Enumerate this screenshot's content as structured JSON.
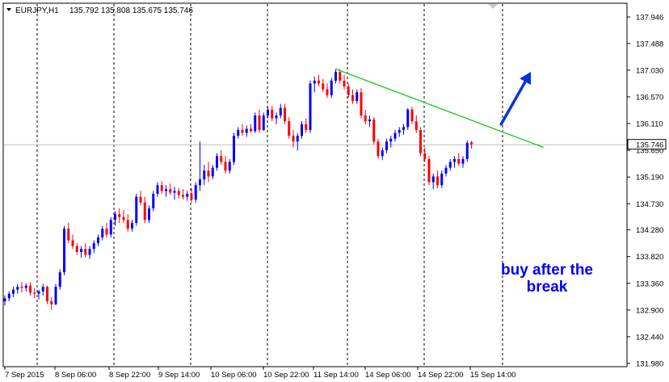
{
  "header": {
    "symbol": "EURJPY,H1",
    "ohlc": "135.792 135.808 135.675 135.746"
  },
  "annotation": {
    "line1": "buy after the",
    "line2": "break"
  },
  "colors": {
    "bull": "#0000ff",
    "bear": "#ff0000",
    "trendline": "#33cc33",
    "arrow": "#0033dd",
    "annotation": "#0000ff",
    "price_line": "#c0c0c0",
    "current_price_box": "#ffffff"
  },
  "chart_data": {
    "type": "candlestick",
    "symbol": "EURJPY",
    "timeframe": "H1",
    "grid": "vertical dashed separators",
    "ylim": [
      131.98,
      138.2
    ],
    "y_ticks": [
      "137.946",
      "137.488",
      "137.030",
      "136.570",
      "136.110",
      "135.650",
      "135.190",
      "134.730",
      "134.280",
      "133.820",
      "133.360",
      "132.900",
      "132.440",
      "131.980"
    ],
    "x_ticks": [
      "7 Sep 2015",
      "8 Sep 06:00",
      "8 Sep 22:00",
      "9 Sep 14:00",
      "10 Sep 06:00",
      "10 Sep 22:00",
      "11 Sep 14:00",
      "14 Sep 06:00",
      "14 Sep 22:00",
      "15 Sep 14:00"
    ],
    "current_price": "135.746",
    "current_price_value": 135.746,
    "candles": [
      {
        "o": 133.05,
        "h": 133.15,
        "l": 132.98,
        "c": 133.1
      },
      {
        "o": 133.1,
        "h": 133.22,
        "l": 133.05,
        "c": 133.18
      },
      {
        "o": 133.18,
        "h": 133.3,
        "l": 133.12,
        "c": 133.25
      },
      {
        "o": 133.25,
        "h": 133.35,
        "l": 133.18,
        "c": 133.3
      },
      {
        "o": 133.3,
        "h": 133.38,
        "l": 133.2,
        "c": 133.28
      },
      {
        "o": 133.28,
        "h": 133.36,
        "l": 133.22,
        "c": 133.32
      },
      {
        "o": 133.32,
        "h": 133.38,
        "l": 133.15,
        "c": 133.2
      },
      {
        "o": 133.2,
        "h": 133.28,
        "l": 133.1,
        "c": 133.18
      },
      {
        "o": 133.18,
        "h": 133.25,
        "l": 133.08,
        "c": 133.22
      },
      {
        "o": 133.22,
        "h": 133.35,
        "l": 133.15,
        "c": 133.3
      },
      {
        "o": 133.3,
        "h": 133.32,
        "l": 133.0,
        "c": 133.05
      },
      {
        "o": 133.05,
        "h": 133.12,
        "l": 132.9,
        "c": 133.0
      },
      {
        "o": 133.0,
        "h": 133.35,
        "l": 132.98,
        "c": 133.3
      },
      {
        "o": 133.3,
        "h": 133.6,
        "l": 133.25,
        "c": 133.55
      },
      {
        "o": 133.55,
        "h": 134.35,
        "l": 133.5,
        "c": 134.3
      },
      {
        "o": 134.3,
        "h": 134.4,
        "l": 134.05,
        "c": 134.1
      },
      {
        "o": 134.1,
        "h": 134.2,
        "l": 133.95,
        "c": 134.0
      },
      {
        "o": 134.0,
        "h": 134.05,
        "l": 133.85,
        "c": 133.9
      },
      {
        "o": 133.9,
        "h": 134.0,
        "l": 133.8,
        "c": 133.95
      },
      {
        "o": 133.95,
        "h": 134.05,
        "l": 133.8,
        "c": 133.85
      },
      {
        "o": 133.85,
        "h": 134.0,
        "l": 133.78,
        "c": 133.95
      },
      {
        "o": 133.95,
        "h": 134.1,
        "l": 133.88,
        "c": 134.05
      },
      {
        "o": 134.05,
        "h": 134.2,
        "l": 134.0,
        "c": 134.15
      },
      {
        "o": 134.15,
        "h": 134.35,
        "l": 134.1,
        "c": 134.3
      },
      {
        "o": 134.3,
        "h": 134.4,
        "l": 134.15,
        "c": 134.2
      },
      {
        "o": 134.2,
        "h": 134.5,
        "l": 134.15,
        "c": 134.45
      },
      {
        "o": 134.45,
        "h": 134.6,
        "l": 134.35,
        "c": 134.55
      },
      {
        "o": 134.55,
        "h": 134.65,
        "l": 134.4,
        "c": 134.5
      },
      {
        "o": 134.5,
        "h": 134.62,
        "l": 134.4,
        "c": 134.45
      },
      {
        "o": 134.45,
        "h": 134.55,
        "l": 134.25,
        "c": 134.3
      },
      {
        "o": 134.3,
        "h": 134.45,
        "l": 134.25,
        "c": 134.4
      },
      {
        "o": 134.4,
        "h": 134.9,
        "l": 134.35,
        "c": 134.85
      },
      {
        "o": 134.85,
        "h": 134.95,
        "l": 134.7,
        "c": 134.75
      },
      {
        "o": 134.75,
        "h": 134.85,
        "l": 134.4,
        "c": 134.45
      },
      {
        "o": 134.45,
        "h": 134.7,
        "l": 134.4,
        "c": 134.65
      },
      {
        "o": 134.65,
        "h": 134.95,
        "l": 134.6,
        "c": 134.9
      },
      {
        "o": 134.9,
        "h": 135.1,
        "l": 134.85,
        "c": 135.05
      },
      {
        "o": 135.05,
        "h": 135.12,
        "l": 134.9,
        "c": 134.95
      },
      {
        "o": 134.95,
        "h": 135.05,
        "l": 134.85,
        "c": 134.98
      },
      {
        "o": 134.98,
        "h": 135.08,
        "l": 134.88,
        "c": 134.92
      },
      {
        "o": 134.92,
        "h": 135.02,
        "l": 134.8,
        "c": 134.95
      },
      {
        "o": 134.95,
        "h": 135.0,
        "l": 134.82,
        "c": 134.88
      },
      {
        "o": 134.88,
        "h": 134.98,
        "l": 134.8,
        "c": 134.85
      },
      {
        "o": 134.85,
        "h": 134.95,
        "l": 134.78,
        "c": 134.9
      },
      {
        "o": 134.9,
        "h": 135.0,
        "l": 134.75,
        "c": 134.8
      },
      {
        "o": 134.8,
        "h": 135.1,
        "l": 134.75,
        "c": 135.05
      },
      {
        "o": 135.05,
        "h": 135.8,
        "l": 134.95,
        "c": 135.15
      },
      {
        "o": 135.15,
        "h": 135.4,
        "l": 135.05,
        "c": 135.3
      },
      {
        "o": 135.3,
        "h": 135.45,
        "l": 135.1,
        "c": 135.2
      },
      {
        "o": 135.2,
        "h": 135.4,
        "l": 135.15,
        "c": 135.35
      },
      {
        "o": 135.35,
        "h": 135.6,
        "l": 135.3,
        "c": 135.55
      },
      {
        "o": 135.55,
        "h": 135.65,
        "l": 135.4,
        "c": 135.45
      },
      {
        "o": 135.45,
        "h": 135.55,
        "l": 135.25,
        "c": 135.3
      },
      {
        "o": 135.3,
        "h": 135.5,
        "l": 135.25,
        "c": 135.45
      },
      {
        "o": 135.45,
        "h": 135.95,
        "l": 135.4,
        "c": 135.9
      },
      {
        "o": 135.9,
        "h": 136.05,
        "l": 135.85,
        "c": 136.0
      },
      {
        "o": 136.0,
        "h": 136.1,
        "l": 135.9,
        "c": 135.95
      },
      {
        "o": 135.95,
        "h": 136.08,
        "l": 135.88,
        "c": 136.02
      },
      {
        "o": 136.02,
        "h": 136.1,
        "l": 135.95,
        "c": 135.98
      },
      {
        "o": 135.98,
        "h": 136.3,
        "l": 135.95,
        "c": 136.25
      },
      {
        "o": 136.25,
        "h": 136.35,
        "l": 135.95,
        "c": 136.0
      },
      {
        "o": 136.0,
        "h": 136.3,
        "l": 135.98,
        "c": 136.25
      },
      {
        "o": 136.25,
        "h": 136.4,
        "l": 136.2,
        "c": 136.35
      },
      {
        "o": 136.35,
        "h": 136.42,
        "l": 136.15,
        "c": 136.2
      },
      {
        "o": 136.2,
        "h": 136.3,
        "l": 136.1,
        "c": 136.25
      },
      {
        "o": 136.25,
        "h": 136.45,
        "l": 136.2,
        "c": 136.38
      },
      {
        "o": 136.38,
        "h": 136.45,
        "l": 136.1,
        "c": 136.15
      },
      {
        "o": 136.15,
        "h": 136.22,
        "l": 135.85,
        "c": 135.9
      },
      {
        "o": 135.9,
        "h": 136.0,
        "l": 135.7,
        "c": 135.8
      },
      {
        "o": 135.8,
        "h": 135.95,
        "l": 135.65,
        "c": 135.9
      },
      {
        "o": 135.9,
        "h": 136.15,
        "l": 135.85,
        "c": 136.1
      },
      {
        "o": 136.1,
        "h": 136.2,
        "l": 135.95,
        "c": 136.0
      },
      {
        "o": 136.0,
        "h": 136.85,
        "l": 135.95,
        "c": 136.8
      },
      {
        "o": 136.8,
        "h": 136.92,
        "l": 136.65,
        "c": 136.85
      },
      {
        "o": 136.85,
        "h": 136.95,
        "l": 136.75,
        "c": 136.8
      },
      {
        "o": 136.8,
        "h": 136.88,
        "l": 136.65,
        "c": 136.7
      },
      {
        "o": 136.7,
        "h": 136.8,
        "l": 136.55,
        "c": 136.6
      },
      {
        "o": 136.6,
        "h": 136.9,
        "l": 136.55,
        "c": 136.85
      },
      {
        "o": 136.85,
        "h": 137.05,
        "l": 136.8,
        "c": 137.0
      },
      {
        "o": 137.0,
        "h": 137.05,
        "l": 136.8,
        "c": 136.85
      },
      {
        "o": 136.85,
        "h": 136.95,
        "l": 136.7,
        "c": 136.75
      },
      {
        "o": 136.75,
        "h": 136.8,
        "l": 136.55,
        "c": 136.6
      },
      {
        "o": 136.6,
        "h": 136.7,
        "l": 136.45,
        "c": 136.5
      },
      {
        "o": 136.5,
        "h": 136.7,
        "l": 136.45,
        "c": 136.65
      },
      {
        "o": 136.65,
        "h": 136.72,
        "l": 136.2,
        "c": 136.25
      },
      {
        "o": 136.25,
        "h": 136.35,
        "l": 136.1,
        "c": 136.15
      },
      {
        "o": 136.15,
        "h": 136.25,
        "l": 136.05,
        "c": 136.18
      },
      {
        "o": 136.18,
        "h": 136.22,
        "l": 135.75,
        "c": 135.8
      },
      {
        "o": 135.8,
        "h": 135.85,
        "l": 135.5,
        "c": 135.55
      },
      {
        "o": 135.55,
        "h": 135.7,
        "l": 135.48,
        "c": 135.65
      },
      {
        "o": 135.65,
        "h": 135.85,
        "l": 135.6,
        "c": 135.8
      },
      {
        "o": 135.8,
        "h": 135.9,
        "l": 135.7,
        "c": 135.85
      },
      {
        "o": 135.85,
        "h": 136.0,
        "l": 135.8,
        "c": 135.95
      },
      {
        "o": 135.95,
        "h": 136.05,
        "l": 135.88,
        "c": 136.0
      },
      {
        "o": 136.0,
        "h": 136.1,
        "l": 135.92,
        "c": 136.05
      },
      {
        "o": 136.05,
        "h": 136.38,
        "l": 136.0,
        "c": 136.35
      },
      {
        "o": 136.35,
        "h": 136.4,
        "l": 136.1,
        "c": 136.15
      },
      {
        "o": 136.15,
        "h": 136.25,
        "l": 135.95,
        "c": 136.0
      },
      {
        "o": 136.0,
        "h": 136.05,
        "l": 135.55,
        "c": 135.6
      },
      {
        "o": 135.6,
        "h": 135.7,
        "l": 135.45,
        "c": 135.5
      },
      {
        "o": 135.5,
        "h": 135.55,
        "l": 135.05,
        "c": 135.1
      },
      {
        "o": 135.1,
        "h": 135.25,
        "l": 134.98,
        "c": 135.2
      },
      {
        "o": 135.2,
        "h": 135.3,
        "l": 135.0,
        "c": 135.05
      },
      {
        "o": 135.05,
        "h": 135.3,
        "l": 135.0,
        "c": 135.25
      },
      {
        "o": 135.25,
        "h": 135.4,
        "l": 135.2,
        "c": 135.35
      },
      {
        "o": 135.35,
        "h": 135.5,
        "l": 135.3,
        "c": 135.45
      },
      {
        "o": 135.45,
        "h": 135.55,
        "l": 135.35,
        "c": 135.5
      },
      {
        "o": 135.5,
        "h": 135.6,
        "l": 135.38,
        "c": 135.42
      },
      {
        "o": 135.42,
        "h": 135.55,
        "l": 135.35,
        "c": 135.5
      },
      {
        "o": 135.5,
        "h": 135.82,
        "l": 135.45,
        "c": 135.78
      },
      {
        "o": 135.79,
        "h": 135.81,
        "l": 135.68,
        "c": 135.75
      }
    ],
    "trendline": {
      "start_index": 78,
      "start_price": 137.05,
      "end_index": 127,
      "end_price": 135.7
    },
    "arrow": {
      "from_index": 117,
      "from_price": 136.1,
      "to_index": 124,
      "to_price": 137.0
    }
  }
}
